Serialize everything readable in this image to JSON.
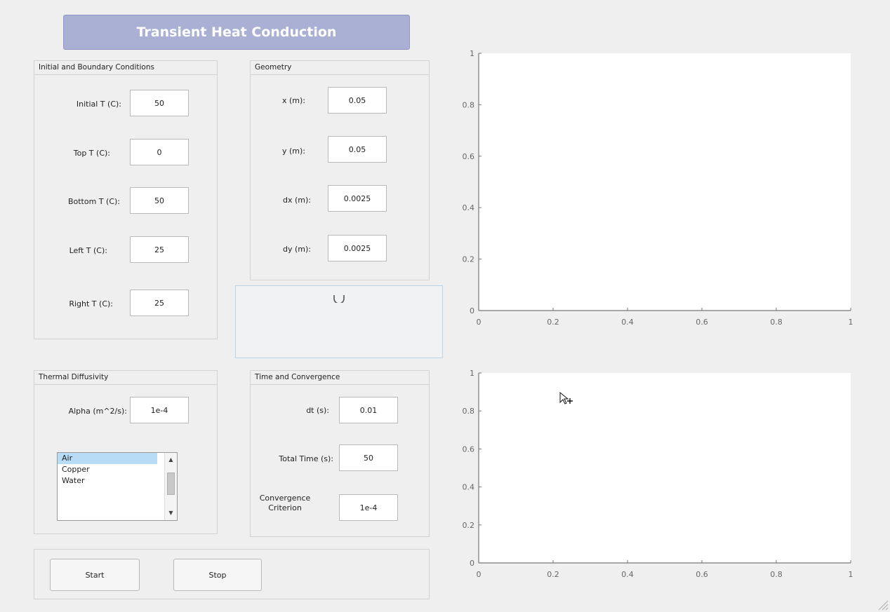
{
  "title": "Transient Heat Conduction",
  "panels": {
    "bc": {
      "title": "Initial and Boundary Conditions",
      "fields": [
        {
          "label": "Initial T (C):",
          "value": "50"
        },
        {
          "label": "Top T (C):",
          "value": "0"
        },
        {
          "label": "Bottom T (C):",
          "value": "50"
        },
        {
          "label": "Left T (C):",
          "value": "25"
        },
        {
          "label": "Right T (C):",
          "value": "25"
        }
      ]
    },
    "geometry": {
      "title": "Geometry",
      "fields": [
        {
          "label": "x (m):",
          "value": "0.05"
        },
        {
          "label": "y (m):",
          "value": "0.05"
        },
        {
          "label": "dx (m):",
          "value": "0.0025"
        },
        {
          "label": "dy (m):",
          "value": "0.0025"
        }
      ]
    },
    "diffusivity": {
      "title": "Thermal Diffusivity",
      "alpha_label": "Alpha (m^2/s):",
      "alpha_value": "1e-4",
      "materials": [
        "Air",
        "Copper",
        "Water"
      ],
      "selected": "Air"
    },
    "time": {
      "title": "Time and Convergence",
      "fields": [
        {
          "label": "dt (s):",
          "value": "0.01"
        },
        {
          "label": "Total Time (s):",
          "value": "50"
        },
        {
          "label": "Convergence Criterion",
          "value": "1e-4"
        }
      ]
    }
  },
  "buttons": {
    "start": "Start",
    "stop": "Stop"
  },
  "status_icon": "busy-spinner-icon",
  "cursor_icon": "move-cursor-icon",
  "chart_data": [
    {
      "type": "line",
      "title": "",
      "xlabel": "",
      "ylabel": "",
      "xlim": [
        0,
        1
      ],
      "ylim": [
        0,
        1
      ],
      "x_ticks": [
        "0",
        "0.2",
        "0.4",
        "0.6",
        "0.8",
        "1"
      ],
      "y_ticks": [
        "0",
        "0.2",
        "0.4",
        "0.6",
        "0.8",
        "1"
      ],
      "series": []
    },
    {
      "type": "line",
      "title": "",
      "xlabel": "",
      "ylabel": "",
      "xlim": [
        0,
        1
      ],
      "ylim": [
        0,
        1
      ],
      "x_ticks": [
        "0",
        "0.2",
        "0.4",
        "0.6",
        "0.8",
        "1"
      ],
      "y_ticks": [
        "0",
        "0.2",
        "0.4",
        "0.6",
        "0.8",
        "1"
      ],
      "series": []
    }
  ]
}
